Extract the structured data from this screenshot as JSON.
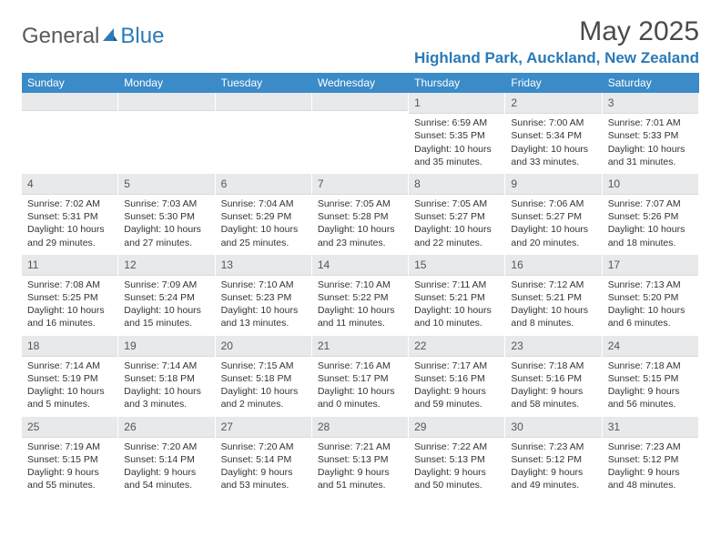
{
  "logo": {
    "text1": "General",
    "text2": "Blue"
  },
  "title": "May 2025",
  "location": "Highland Park, Auckland, New Zealand",
  "colors": {
    "header_bg": "#3b8bc8",
    "daynum_bg": "#e7e9eb",
    "accent": "#2a7ab8",
    "text": "#333333"
  },
  "weekdays": [
    "Sunday",
    "Monday",
    "Tuesday",
    "Wednesday",
    "Thursday",
    "Friday",
    "Saturday"
  ],
  "weeks": [
    [
      {
        "n": "",
        "sunrise": "",
        "sunset": "",
        "daylight": ""
      },
      {
        "n": "",
        "sunrise": "",
        "sunset": "",
        "daylight": ""
      },
      {
        "n": "",
        "sunrise": "",
        "sunset": "",
        "daylight": ""
      },
      {
        "n": "",
        "sunrise": "",
        "sunset": "",
        "daylight": ""
      },
      {
        "n": "1",
        "sunrise": "Sunrise: 6:59 AM",
        "sunset": "Sunset: 5:35 PM",
        "daylight": "Daylight: 10 hours and 35 minutes."
      },
      {
        "n": "2",
        "sunrise": "Sunrise: 7:00 AM",
        "sunset": "Sunset: 5:34 PM",
        "daylight": "Daylight: 10 hours and 33 minutes."
      },
      {
        "n": "3",
        "sunrise": "Sunrise: 7:01 AM",
        "sunset": "Sunset: 5:33 PM",
        "daylight": "Daylight: 10 hours and 31 minutes."
      }
    ],
    [
      {
        "n": "4",
        "sunrise": "Sunrise: 7:02 AM",
        "sunset": "Sunset: 5:31 PM",
        "daylight": "Daylight: 10 hours and 29 minutes."
      },
      {
        "n": "5",
        "sunrise": "Sunrise: 7:03 AM",
        "sunset": "Sunset: 5:30 PM",
        "daylight": "Daylight: 10 hours and 27 minutes."
      },
      {
        "n": "6",
        "sunrise": "Sunrise: 7:04 AM",
        "sunset": "Sunset: 5:29 PM",
        "daylight": "Daylight: 10 hours and 25 minutes."
      },
      {
        "n": "7",
        "sunrise": "Sunrise: 7:05 AM",
        "sunset": "Sunset: 5:28 PM",
        "daylight": "Daylight: 10 hours and 23 minutes."
      },
      {
        "n": "8",
        "sunrise": "Sunrise: 7:05 AM",
        "sunset": "Sunset: 5:27 PM",
        "daylight": "Daylight: 10 hours and 22 minutes."
      },
      {
        "n": "9",
        "sunrise": "Sunrise: 7:06 AM",
        "sunset": "Sunset: 5:27 PM",
        "daylight": "Daylight: 10 hours and 20 minutes."
      },
      {
        "n": "10",
        "sunrise": "Sunrise: 7:07 AM",
        "sunset": "Sunset: 5:26 PM",
        "daylight": "Daylight: 10 hours and 18 minutes."
      }
    ],
    [
      {
        "n": "11",
        "sunrise": "Sunrise: 7:08 AM",
        "sunset": "Sunset: 5:25 PM",
        "daylight": "Daylight: 10 hours and 16 minutes."
      },
      {
        "n": "12",
        "sunrise": "Sunrise: 7:09 AM",
        "sunset": "Sunset: 5:24 PM",
        "daylight": "Daylight: 10 hours and 15 minutes."
      },
      {
        "n": "13",
        "sunrise": "Sunrise: 7:10 AM",
        "sunset": "Sunset: 5:23 PM",
        "daylight": "Daylight: 10 hours and 13 minutes."
      },
      {
        "n": "14",
        "sunrise": "Sunrise: 7:10 AM",
        "sunset": "Sunset: 5:22 PM",
        "daylight": "Daylight: 10 hours and 11 minutes."
      },
      {
        "n": "15",
        "sunrise": "Sunrise: 7:11 AM",
        "sunset": "Sunset: 5:21 PM",
        "daylight": "Daylight: 10 hours and 10 minutes."
      },
      {
        "n": "16",
        "sunrise": "Sunrise: 7:12 AM",
        "sunset": "Sunset: 5:21 PM",
        "daylight": "Daylight: 10 hours and 8 minutes."
      },
      {
        "n": "17",
        "sunrise": "Sunrise: 7:13 AM",
        "sunset": "Sunset: 5:20 PM",
        "daylight": "Daylight: 10 hours and 6 minutes."
      }
    ],
    [
      {
        "n": "18",
        "sunrise": "Sunrise: 7:14 AM",
        "sunset": "Sunset: 5:19 PM",
        "daylight": "Daylight: 10 hours and 5 minutes."
      },
      {
        "n": "19",
        "sunrise": "Sunrise: 7:14 AM",
        "sunset": "Sunset: 5:18 PM",
        "daylight": "Daylight: 10 hours and 3 minutes."
      },
      {
        "n": "20",
        "sunrise": "Sunrise: 7:15 AM",
        "sunset": "Sunset: 5:18 PM",
        "daylight": "Daylight: 10 hours and 2 minutes."
      },
      {
        "n": "21",
        "sunrise": "Sunrise: 7:16 AM",
        "sunset": "Sunset: 5:17 PM",
        "daylight": "Daylight: 10 hours and 0 minutes."
      },
      {
        "n": "22",
        "sunrise": "Sunrise: 7:17 AM",
        "sunset": "Sunset: 5:16 PM",
        "daylight": "Daylight: 9 hours and 59 minutes."
      },
      {
        "n": "23",
        "sunrise": "Sunrise: 7:18 AM",
        "sunset": "Sunset: 5:16 PM",
        "daylight": "Daylight: 9 hours and 58 minutes."
      },
      {
        "n": "24",
        "sunrise": "Sunrise: 7:18 AM",
        "sunset": "Sunset: 5:15 PM",
        "daylight": "Daylight: 9 hours and 56 minutes."
      }
    ],
    [
      {
        "n": "25",
        "sunrise": "Sunrise: 7:19 AM",
        "sunset": "Sunset: 5:15 PM",
        "daylight": "Daylight: 9 hours and 55 minutes."
      },
      {
        "n": "26",
        "sunrise": "Sunrise: 7:20 AM",
        "sunset": "Sunset: 5:14 PM",
        "daylight": "Daylight: 9 hours and 54 minutes."
      },
      {
        "n": "27",
        "sunrise": "Sunrise: 7:20 AM",
        "sunset": "Sunset: 5:14 PM",
        "daylight": "Daylight: 9 hours and 53 minutes."
      },
      {
        "n": "28",
        "sunrise": "Sunrise: 7:21 AM",
        "sunset": "Sunset: 5:13 PM",
        "daylight": "Daylight: 9 hours and 51 minutes."
      },
      {
        "n": "29",
        "sunrise": "Sunrise: 7:22 AM",
        "sunset": "Sunset: 5:13 PM",
        "daylight": "Daylight: 9 hours and 50 minutes."
      },
      {
        "n": "30",
        "sunrise": "Sunrise: 7:23 AM",
        "sunset": "Sunset: 5:12 PM",
        "daylight": "Daylight: 9 hours and 49 minutes."
      },
      {
        "n": "31",
        "sunrise": "Sunrise: 7:23 AM",
        "sunset": "Sunset: 5:12 PM",
        "daylight": "Daylight: 9 hours and 48 minutes."
      }
    ]
  ]
}
